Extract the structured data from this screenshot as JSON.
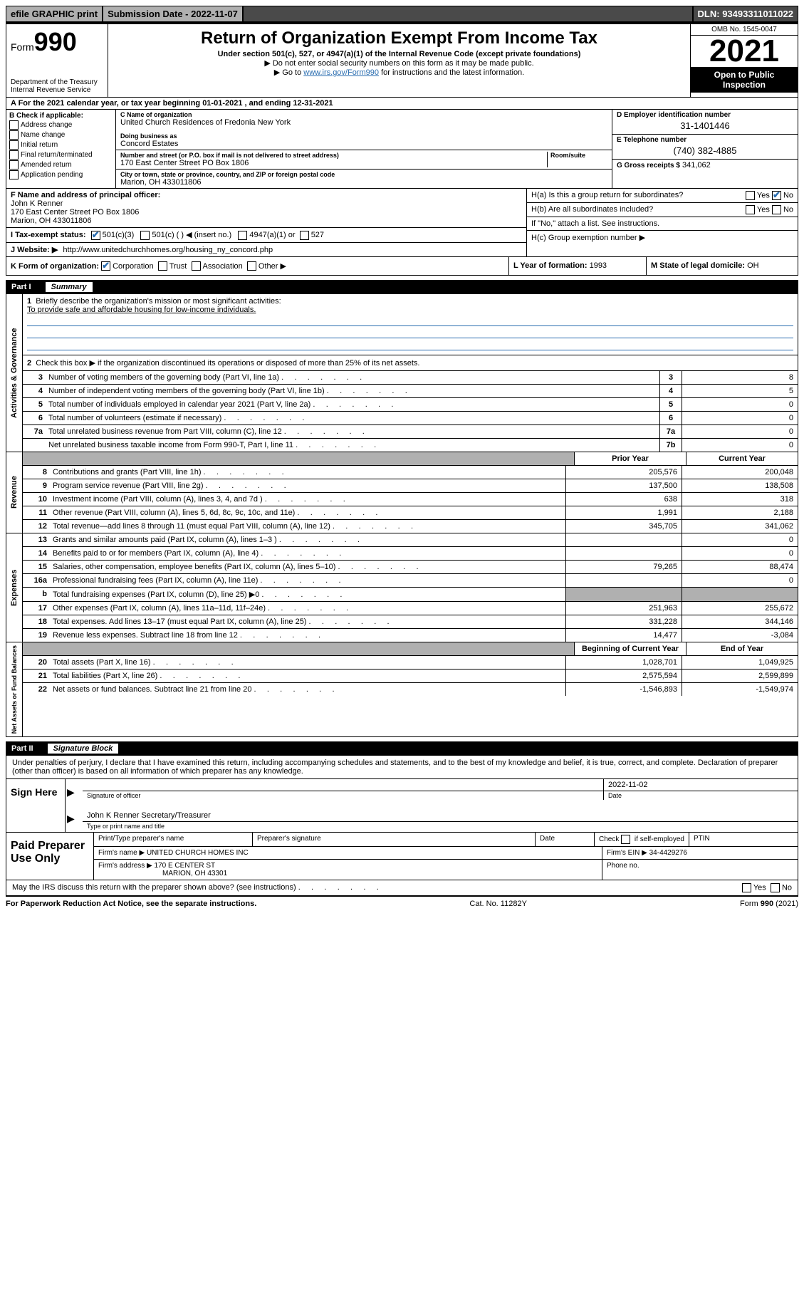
{
  "top": {
    "efile": "efile GRAPHIC print",
    "submission_label": "Submission Date - 2022-11-07",
    "dln": "DLN: 93493311011022"
  },
  "header": {
    "form_prefix": "Form",
    "form_number": "990",
    "title": "Return of Organization Exempt From Income Tax",
    "subtitle": "Under section 501(c), 527, or 4947(a)(1) of the Internal Revenue Code (except private foundations)",
    "note1": "▶ Do not enter social security numbers on this form as it may be made public.",
    "note2_pre": "▶ Go to ",
    "note2_link": "www.irs.gov/Form990",
    "note2_post": " for instructions and the latest information.",
    "dept": "Department of the Treasury",
    "irs": "Internal Revenue Service",
    "omb": "OMB No. 1545-0047",
    "year": "2021",
    "open": "Open to Public Inspection"
  },
  "rowA": "A For the 2021 calendar year, or tax year beginning 01-01-2021   , and ending 12-31-2021",
  "boxB": {
    "title": "B Check if applicable:",
    "items": [
      "Address change",
      "Name change",
      "Initial return",
      "Final return/terminated",
      "Amended return",
      "Application pending"
    ]
  },
  "boxC": {
    "name_lbl": "C Name of organization",
    "name": "United Church Residences of Fredonia New York",
    "dba_lbl": "Doing business as",
    "dba": "Concord Estates",
    "addr_lbl": "Number and street (or P.O. box if mail is not delivered to street address)",
    "room_lbl": "Room/suite",
    "addr": "170 East Center Street PO Box 1806",
    "city_lbl": "City or town, state or province, country, and ZIP or foreign postal code",
    "city": "Marion, OH   433011806"
  },
  "boxD": {
    "lbl": "D Employer identification number",
    "val": "31-1401446"
  },
  "boxE": {
    "lbl": "E Telephone number",
    "val": "(740) 382-4885"
  },
  "boxG": {
    "lbl": "G Gross receipts $",
    "val": "341,062"
  },
  "boxF": {
    "lbl": "F Name and address of principal officer:",
    "name": "John K Renner",
    "addr1": "170 East Center Street PO Box 1806",
    "addr2": "Marion, OH   433011806"
  },
  "boxH": {
    "a": "H(a)  Is this a group return for subordinates?",
    "b": "H(b)  Are all subordinates included?",
    "b_note": "If \"No,\" attach a list. See instructions.",
    "c": "H(c)  Group exemption number ▶",
    "yes": "Yes",
    "no": "No"
  },
  "rowI": {
    "lbl": "I   Tax-exempt status:",
    "o1": "501(c)(3)",
    "o2": "501(c) (   ) ◀ (insert no.)",
    "o3": "4947(a)(1) or",
    "o4": "527"
  },
  "rowJ": {
    "lbl": "J   Website: ▶",
    "val": "http://www.unitedchurchhomes.org/housing_ny_concord.php"
  },
  "rowK": {
    "lbl": "K Form of organization:",
    "o1": "Corporation",
    "o2": "Trust",
    "o3": "Association",
    "o4": "Other ▶"
  },
  "rowL": {
    "lbl": "L Year of formation:",
    "val": "1993"
  },
  "rowM": {
    "lbl": "M State of legal domicile:",
    "val": "OH"
  },
  "part1": {
    "num": "Part I",
    "title": "Summary"
  },
  "sidebars": {
    "gov": "Activities & Governance",
    "rev": "Revenue",
    "exp": "Expenses",
    "net": "Net Assets or Fund Balances"
  },
  "gov": {
    "q1": "Briefly describe the organization's mission or most significant activities:",
    "q1_ans": "To provide safe and affordable housing for low-income individuals.",
    "q2": "Check this box ▶        if the organization discontinued its operations or disposed of more than 25% of its net assets.",
    "rows": [
      {
        "n": "3",
        "t": "Number of voting members of the governing body (Part VI, line 1a)",
        "box": "3",
        "v": "8"
      },
      {
        "n": "4",
        "t": "Number of independent voting members of the governing body (Part VI, line 1b)",
        "box": "4",
        "v": "5"
      },
      {
        "n": "5",
        "t": "Total number of individuals employed in calendar year 2021 (Part V, line 2a)",
        "box": "5",
        "v": "0"
      },
      {
        "n": "6",
        "t": "Total number of volunteers (estimate if necessary)",
        "box": "6",
        "v": "0"
      },
      {
        "n": "7a",
        "t": "Total unrelated business revenue from Part VIII, column (C), line 12",
        "box": "7a",
        "v": "0"
      },
      {
        "n": "",
        "t": "Net unrelated business taxable income from Form 990-T, Part I, line 11",
        "box": "7b",
        "v": "0"
      }
    ]
  },
  "colhdr": {
    "prior": "Prior Year",
    "current": "Current Year",
    "begin": "Beginning of Current Year",
    "end": "End of Year"
  },
  "rev": [
    {
      "n": "8",
      "t": "Contributions and grants (Part VIII, line 1h)",
      "p": "205,576",
      "c": "200,048"
    },
    {
      "n": "9",
      "t": "Program service revenue (Part VIII, line 2g)",
      "p": "137,500",
      "c": "138,508"
    },
    {
      "n": "10",
      "t": "Investment income (Part VIII, column (A), lines 3, 4, and 7d )",
      "p": "638",
      "c": "318"
    },
    {
      "n": "11",
      "t": "Other revenue (Part VIII, column (A), lines 5, 6d, 8c, 9c, 10c, and 11e)",
      "p": "1,991",
      "c": "2,188"
    },
    {
      "n": "12",
      "t": "Total revenue—add lines 8 through 11 (must equal Part VIII, column (A), line 12)",
      "p": "345,705",
      "c": "341,062"
    }
  ],
  "exp": [
    {
      "n": "13",
      "t": "Grants and similar amounts paid (Part IX, column (A), lines 1–3 )",
      "p": "",
      "c": "0"
    },
    {
      "n": "14",
      "t": "Benefits paid to or for members (Part IX, column (A), line 4)",
      "p": "",
      "c": "0"
    },
    {
      "n": "15",
      "t": "Salaries, other compensation, employee benefits (Part IX, column (A), lines 5–10)",
      "p": "79,265",
      "c": "88,474"
    },
    {
      "n": "16a",
      "t": "Professional fundraising fees (Part IX, column (A), line 11e)",
      "p": "",
      "c": "0"
    },
    {
      "n": "b",
      "t": "Total fundraising expenses (Part IX, column (D), line 25) ▶0",
      "p": "SHADE",
      "c": "SHADE"
    },
    {
      "n": "17",
      "t": "Other expenses (Part IX, column (A), lines 11a–11d, 11f–24e)",
      "p": "251,963",
      "c": "255,672"
    },
    {
      "n": "18",
      "t": "Total expenses. Add lines 13–17 (must equal Part IX, column (A), line 25)",
      "p": "331,228",
      "c": "344,146"
    },
    {
      "n": "19",
      "t": "Revenue less expenses. Subtract line 18 from line 12",
      "p": "14,477",
      "c": "-3,084"
    }
  ],
  "net": [
    {
      "n": "20",
      "t": "Total assets (Part X, line 16)",
      "p": "1,028,701",
      "c": "1,049,925"
    },
    {
      "n": "21",
      "t": "Total liabilities (Part X, line 26)",
      "p": "2,575,594",
      "c": "2,599,899"
    },
    {
      "n": "22",
      "t": "Net assets or fund balances. Subtract line 21 from line 20",
      "p": "-1,546,893",
      "c": "-1,549,974"
    }
  ],
  "part2": {
    "num": "Part II",
    "title": "Signature Block"
  },
  "sig": {
    "jurat": "Under penalties of perjury, I declare that I have examined this return, including accompanying schedules and statements, and to the best of my knowledge and belief, it is true, correct, and complete. Declaration of preparer (other than officer) is based on all information of which preparer has any knowledge.",
    "sign_here": "Sign Here",
    "sig_officer": "Signature of officer",
    "date_lbl": "Date",
    "date": "2022-11-02",
    "officer_name": "John K Renner  Secretary/Treasurer",
    "type_name": "Type or print name and title"
  },
  "prep": {
    "title": "Paid Preparer Use Only",
    "h1": "Print/Type preparer's name",
    "h2": "Preparer's signature",
    "h3": "Date",
    "h4_pre": "Check",
    "h4_post": "if self-employed",
    "h5": "PTIN",
    "firm_name_lbl": "Firm's name    ▶",
    "firm_name": "UNITED CHURCH HOMES INC",
    "firm_ein_lbl": "Firm's EIN ▶",
    "firm_ein": "34-4429276",
    "firm_addr_lbl": "Firm's address ▶",
    "firm_addr1": "170 E CENTER ST",
    "firm_addr2": "MARION, OH  43301",
    "phone_lbl": "Phone no."
  },
  "discuss": {
    "txt": "May the IRS discuss this return with the preparer shown above? (see instructions)",
    "yes": "Yes",
    "no": "No"
  },
  "footer": {
    "left": "For Paperwork Reduction Act Notice, see the separate instructions.",
    "mid": "Cat. No. 11282Y",
    "right": "Form 990 (2021)"
  }
}
